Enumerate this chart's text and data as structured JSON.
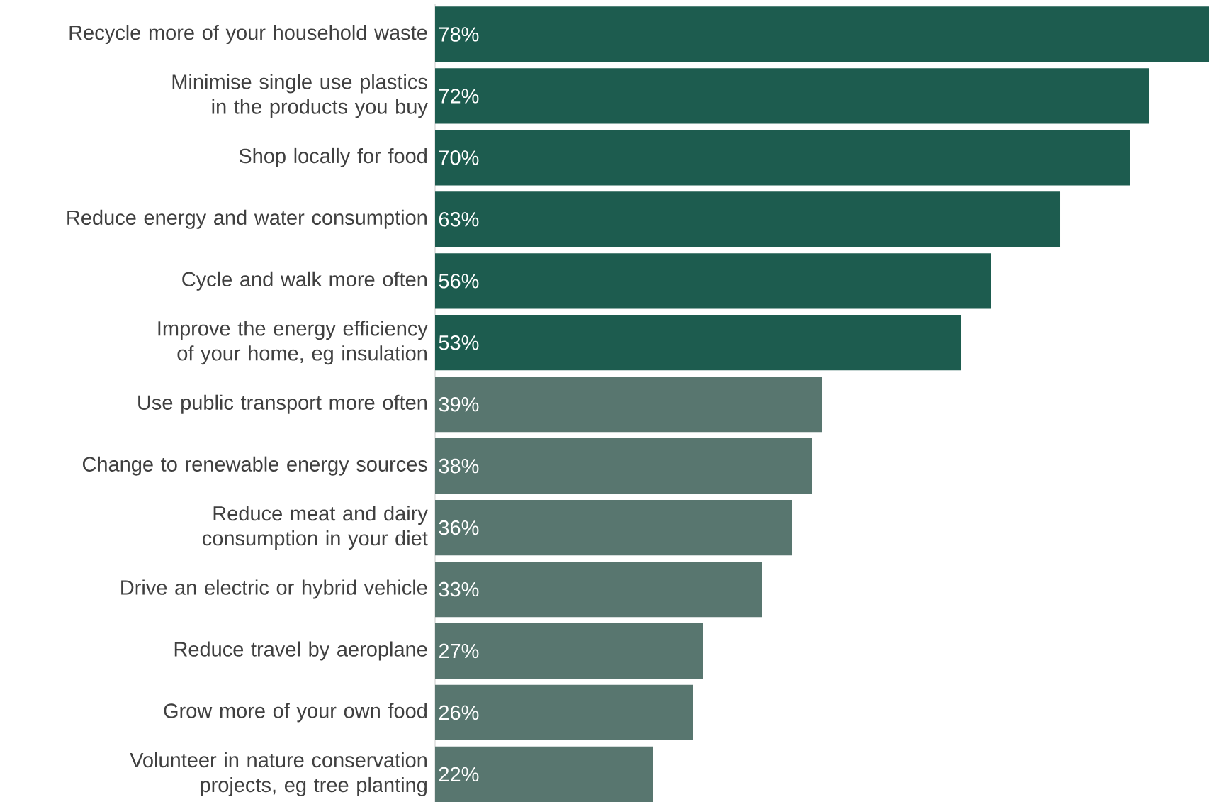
{
  "chart_data": {
    "type": "bar",
    "orientation": "horizontal",
    "categories": [
      "Recycle more of your household waste",
      "Minimise single use plastics in the products you buy",
      "Shop locally for food",
      "Reduce energy and water consumption",
      "Cycle and walk more often",
      "Improve the energy efficiency of your home, eg insulation",
      "Use public transport more often",
      "Change to renewable energy sources",
      "Reduce meat and dairy consumption in your diet",
      "Drive an electric or hybrid vehicle",
      "Reduce travel by aeroplane",
      "Grow more of your own food",
      "Volunteer in nature conservation projects, eg tree planting"
    ],
    "values": [
      78,
      72,
      70,
      63,
      56,
      53,
      39,
      38,
      36,
      33,
      27,
      26,
      22
    ],
    "colors": [
      "#1d5c4f",
      "#1d5c4f",
      "#1d5c4f",
      "#1d5c4f",
      "#1d5c4f",
      "#1d5c4f",
      "#58766f",
      "#58766f",
      "#58766f",
      "#58766f",
      "#58766f",
      "#58766f",
      "#58766f"
    ],
    "value_labels": [
      "78%",
      "72%",
      "70%",
      "63%",
      "56%",
      "53%",
      "39%",
      "38%",
      "36%",
      "33%",
      "27%",
      "26%",
      "22%"
    ]
  }
}
